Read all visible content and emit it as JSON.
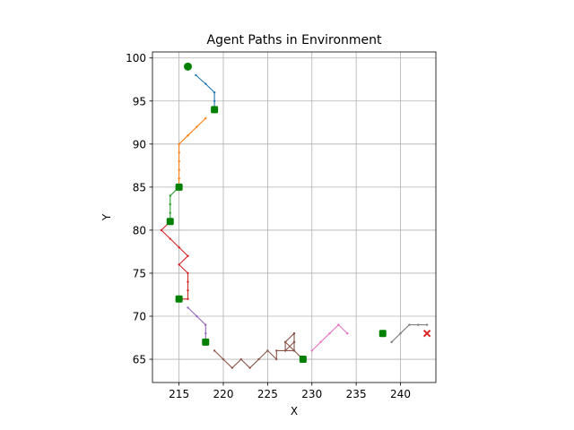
{
  "chart_data": {
    "type": "line",
    "title": "Agent Paths in Environment",
    "xlabel": "X",
    "ylabel": "Y",
    "xlim": [
      212,
      244
    ],
    "ylim": [
      62.3,
      100.7
    ],
    "xticks": [
      215,
      220,
      225,
      230,
      235,
      240
    ],
    "yticks": [
      65,
      70,
      75,
      80,
      85,
      90,
      95,
      100
    ],
    "grid": true,
    "series": [
      {
        "color": "#1f77b4",
        "points": [
          [
            216.9,
            98
          ],
          [
            218,
            97
          ],
          [
            219,
            96
          ],
          [
            219,
            95
          ],
          [
            219,
            94
          ]
        ]
      },
      {
        "color": "#ff7f0e",
        "points": [
          [
            218,
            93
          ],
          [
            217,
            92
          ],
          [
            216,
            91
          ],
          [
            215,
            90
          ],
          [
            215,
            89
          ],
          [
            215,
            88
          ],
          [
            215,
            87
          ],
          [
            215,
            86
          ],
          [
            215,
            85
          ]
        ]
      },
      {
        "color": "#2ca02c",
        "points": [
          [
            215,
            85
          ],
          [
            214,
            84
          ],
          [
            214,
            83
          ],
          [
            214,
            82
          ],
          [
            214,
            81
          ]
        ]
      },
      {
        "color": "#d62728",
        "points": [
          [
            214,
            81
          ],
          [
            213,
            80
          ],
          [
            214,
            79
          ],
          [
            215,
            78
          ],
          [
            216,
            77
          ],
          [
            215,
            76
          ],
          [
            216,
            75
          ],
          [
            216,
            74
          ],
          [
            216,
            73
          ],
          [
            216,
            72
          ],
          [
            215,
            72
          ]
        ]
      },
      {
        "color": "#9467bd",
        "points": [
          [
            216,
            71
          ],
          [
            217,
            70
          ],
          [
            218,
            69
          ],
          [
            218,
            68
          ],
          [
            218,
            67
          ]
        ]
      },
      {
        "color": "#8c564b",
        "points": [
          [
            219,
            66
          ],
          [
            220,
            65
          ],
          [
            221,
            64
          ],
          [
            222,
            65
          ],
          [
            223,
            64
          ],
          [
            224,
            65
          ],
          [
            225,
            66
          ],
          [
            226,
            65
          ],
          [
            226,
            66
          ],
          [
            227,
            66
          ],
          [
            227,
            67
          ],
          [
            228,
            68
          ],
          [
            227,
            67
          ],
          [
            228,
            66
          ],
          [
            228,
            67
          ],
          [
            228,
            68
          ],
          [
            228,
            67
          ],
          [
            227,
            66
          ],
          [
            228,
            66
          ],
          [
            229,
            65
          ]
        ]
      },
      {
        "color": "#e377c2",
        "points": [
          [
            230,
            66
          ],
          [
            231,
            67
          ],
          [
            232,
            68
          ],
          [
            233,
            69
          ],
          [
            234,
            68
          ],
          [
            233,
            69
          ],
          [
            234,
            68
          ]
        ]
      },
      {
        "color": "#7f7f7f",
        "points": [
          [
            239,
            67
          ],
          [
            240,
            68
          ],
          [
            241,
            69
          ],
          [
            242,
            69
          ],
          [
            243,
            69
          ]
        ]
      }
    ],
    "start_marker": {
      "point": [
        216,
        99
      ],
      "color": "#008000"
    },
    "waypoints": {
      "color": "#008000",
      "points": [
        [
          219,
          94
        ],
        [
          215,
          85
        ],
        [
          214,
          81
        ],
        [
          215,
          72
        ],
        [
          218,
          67
        ],
        [
          229,
          65
        ],
        [
          238,
          68
        ]
      ]
    },
    "goal_marker": {
      "point": [
        243,
        68
      ],
      "color": "#d62728"
    }
  }
}
